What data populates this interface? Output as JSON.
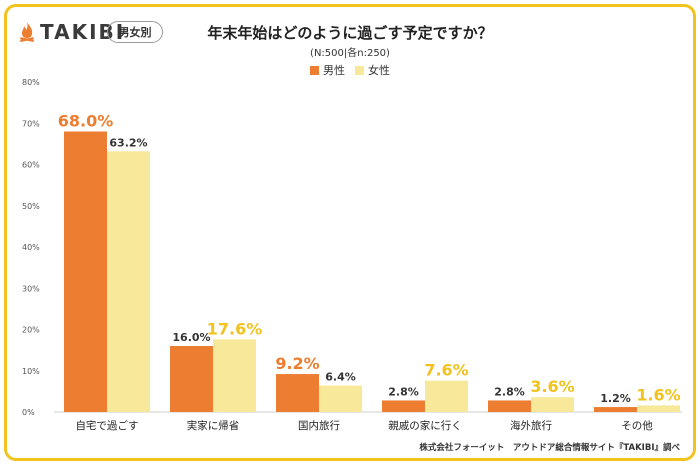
{
  "header": {
    "logo_text": "TAKIBI",
    "logo_icon": "campfire-icon",
    "badge": "男女別",
    "title": "年末年始はどのように過ごす予定ですか？",
    "subtitle": "(N:500|各n:250)"
  },
  "legend": [
    {
      "label": "男性",
      "color": "#ed7d31"
    },
    {
      "label": "女性",
      "color": "#f8e89a"
    }
  ],
  "credit": "株式会社フォーイット　アウトドア総合情報サイト『TAKIBI』調べ",
  "colors": {
    "male_bar": "#ed7d31",
    "female_bar": "#f8e89a",
    "highlight_male_label": "#ed7d31",
    "highlight_female_label": "#f2c21d",
    "frame": "#f2c21d"
  },
  "chart_data": {
    "type": "bar",
    "categories": [
      "自宅で過ごす",
      "実家に帰省",
      "国内旅行",
      "親戚の家に行く",
      "海外旅行",
      "その他"
    ],
    "series": [
      {
        "name": "男性",
        "values": [
          68.0,
          16.0,
          9.2,
          2.8,
          2.8,
          1.2
        ],
        "labels": [
          "68.0%",
          "16.0%",
          "9.2%",
          "2.8%",
          "2.8%",
          "1.2%"
        ],
        "highlight": [
          true,
          false,
          true,
          false,
          false,
          false
        ]
      },
      {
        "name": "女性",
        "values": [
          63.2,
          17.6,
          6.4,
          7.6,
          3.6,
          1.6
        ],
        "labels": [
          "63.2%",
          "17.6%",
          "6.4%",
          "7.6%",
          "3.6%",
          "1.6%"
        ],
        "highlight": [
          false,
          true,
          false,
          true,
          true,
          true
        ]
      }
    ],
    "y_ticks": [
      "0%",
      "10%",
      "20%",
      "30%",
      "40%",
      "50%",
      "60%",
      "70%",
      "80%"
    ],
    "ylim": [
      0,
      80
    ],
    "grid": false,
    "legend_position": "top-center"
  }
}
